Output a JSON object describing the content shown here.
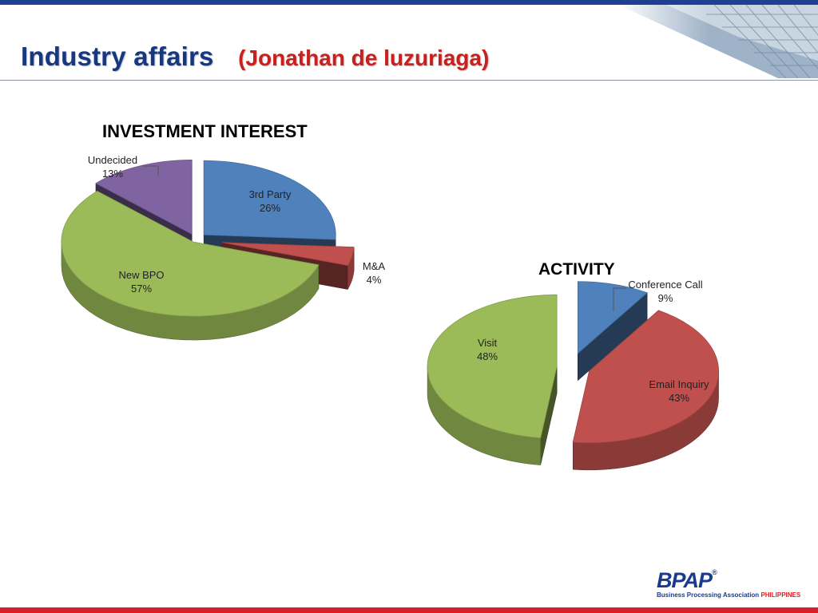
{
  "slide": {
    "title": "Industry affairs",
    "subtitle": "(Jonathan de luzuriaga)"
  },
  "logo": {
    "mark": "BPAP",
    "registered": "®",
    "name": "Business Processing Association",
    "country": "PHILIPPINES"
  },
  "colors": {
    "brand_blue": "#1f3f93",
    "accent_red": "#d61f26",
    "title_blue": "#17377f",
    "subtitle_red": "#c8201e"
  },
  "chart_data": [
    {
      "type": "pie",
      "title": "INVESTMENT INTEREST",
      "style": "3d-exploded",
      "slices": [
        {
          "label": "3rd Party",
          "value": 26,
          "display": "26%",
          "color": "#4f81bd"
        },
        {
          "label": "M&A",
          "value": 4,
          "display": "4%",
          "color": "#c0504d"
        },
        {
          "label": "New BPO",
          "value": 57,
          "display": "57%",
          "color": "#9bbb59"
        },
        {
          "label": "Undecided",
          "value": 13,
          "display": "13%",
          "color": "#8064a2"
        }
      ]
    },
    {
      "type": "pie",
      "title": "ACTIVITY",
      "style": "3d-exploded",
      "slices": [
        {
          "label": "Conference Call",
          "value": 9,
          "display": "9%",
          "color": "#4f81bd"
        },
        {
          "label": "Email Inquiry",
          "value": 43,
          "display": "43%",
          "color": "#c0504d"
        },
        {
          "label": "Visit",
          "value": 48,
          "display": "48%",
          "color": "#9bbb59"
        }
      ]
    }
  ]
}
